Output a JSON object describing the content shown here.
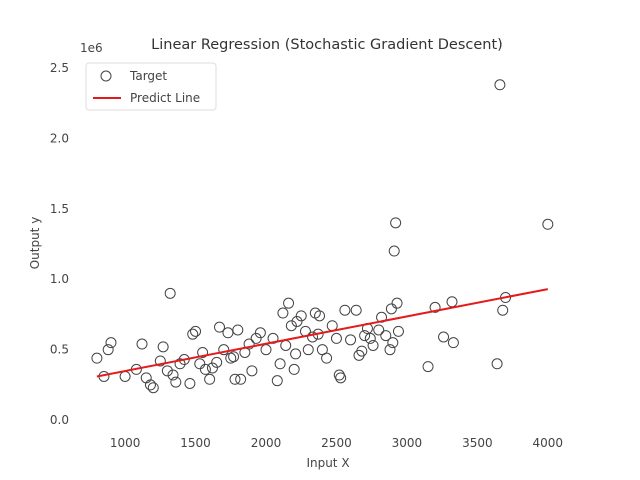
{
  "chart_data": {
    "type": "scatter",
    "title": "Linear Regression (Stochastic Gradient Descent)",
    "xlabel": "Input X",
    "ylabel": "Output y",
    "y_offset_label": "1e6",
    "xlim": [
      680,
      4200
    ],
    "ylim": [
      -0.07,
      2.57
    ],
    "x_ticks": [
      1000,
      1500,
      2000,
      2500,
      3000,
      3500,
      4000
    ],
    "y_ticks": [
      0.0,
      0.5,
      1.0,
      1.5,
      2.0,
      2.5
    ],
    "x_tick_labels": [
      "1000",
      "1500",
      "2000",
      "2500",
      "3000",
      "3500",
      "4000"
    ],
    "y_tick_labels": [
      "0.0",
      "0.5",
      "1.0",
      "1.5",
      "2.0",
      "2.5"
    ],
    "grid": false,
    "legend_position": "top-left",
    "series": [
      {
        "name": "Target",
        "kind": "scatter",
        "color": "#444444",
        "points": [
          [
            800,
            0.44
          ],
          [
            850,
            0.31
          ],
          [
            880,
            0.5
          ],
          [
            900,
            0.55
          ],
          [
            1000,
            0.31
          ],
          [
            1080,
            0.36
          ],
          [
            1120,
            0.54
          ],
          [
            1150,
            0.3
          ],
          [
            1180,
            0.25
          ],
          [
            1200,
            0.23
          ],
          [
            1250,
            0.42
          ],
          [
            1270,
            0.52
          ],
          [
            1300,
            0.35
          ],
          [
            1320,
            0.9
          ],
          [
            1340,
            0.32
          ],
          [
            1360,
            0.27
          ],
          [
            1390,
            0.4
          ],
          [
            1420,
            0.43
          ],
          [
            1460,
            0.26
          ],
          [
            1480,
            0.61
          ],
          [
            1500,
            0.63
          ],
          [
            1530,
            0.4
          ],
          [
            1550,
            0.48
          ],
          [
            1570,
            0.36
          ],
          [
            1600,
            0.29
          ],
          [
            1620,
            0.37
          ],
          [
            1650,
            0.41
          ],
          [
            1670,
            0.66
          ],
          [
            1700,
            0.5
          ],
          [
            1730,
            0.62
          ],
          [
            1750,
            0.44
          ],
          [
            1770,
            0.45
          ],
          [
            1780,
            0.29
          ],
          [
            1800,
            0.64
          ],
          [
            1820,
            0.29
          ],
          [
            1850,
            0.48
          ],
          [
            1880,
            0.54
          ],
          [
            1900,
            0.35
          ],
          [
            1930,
            0.58
          ],
          [
            1960,
            0.62
          ],
          [
            2000,
            0.5
          ],
          [
            2050,
            0.58
          ],
          [
            2080,
            0.28
          ],
          [
            2100,
            0.4
          ],
          [
            2120,
            0.76
          ],
          [
            2140,
            0.53
          ],
          [
            2160,
            0.83
          ],
          [
            2180,
            0.67
          ],
          [
            2200,
            0.36
          ],
          [
            2210,
            0.47
          ],
          [
            2220,
            0.7
          ],
          [
            2250,
            0.74
          ],
          [
            2280,
            0.63
          ],
          [
            2300,
            0.5
          ],
          [
            2330,
            0.59
          ],
          [
            2350,
            0.76
          ],
          [
            2370,
            0.61
          ],
          [
            2380,
            0.74
          ],
          [
            2400,
            0.5
          ],
          [
            2430,
            0.44
          ],
          [
            2470,
            0.67
          ],
          [
            2500,
            0.58
          ],
          [
            2520,
            0.32
          ],
          [
            2530,
            0.3
          ],
          [
            2560,
            0.78
          ],
          [
            2600,
            0.57
          ],
          [
            2640,
            0.78
          ],
          [
            2660,
            0.46
          ],
          [
            2680,
            0.49
          ],
          [
            2700,
            0.6
          ],
          [
            2720,
            0.65
          ],
          [
            2740,
            0.58
          ],
          [
            2760,
            0.53
          ],
          [
            2800,
            0.64
          ],
          [
            2820,
            0.73
          ],
          [
            2850,
            0.6
          ],
          [
            2880,
            0.5
          ],
          [
            2890,
            0.79
          ],
          [
            2900,
            0.55
          ],
          [
            2910,
            1.2
          ],
          [
            2920,
            1.4
          ],
          [
            2930,
            0.83
          ],
          [
            2940,
            0.63
          ],
          [
            3150,
            0.38
          ],
          [
            3200,
            0.8
          ],
          [
            3260,
            0.59
          ],
          [
            3320,
            0.84
          ],
          [
            3330,
            0.55
          ],
          [
            3640,
            0.4
          ],
          [
            3660,
            2.38
          ],
          [
            3680,
            0.78
          ],
          [
            3700,
            0.87
          ],
          [
            4000,
            1.39
          ]
        ]
      },
      {
        "name": "Predict Line",
        "kind": "line",
        "color": "#e41a1c",
        "points": [
          [
            800,
            0.31
          ],
          [
            4000,
            0.93
          ]
        ]
      }
    ]
  }
}
